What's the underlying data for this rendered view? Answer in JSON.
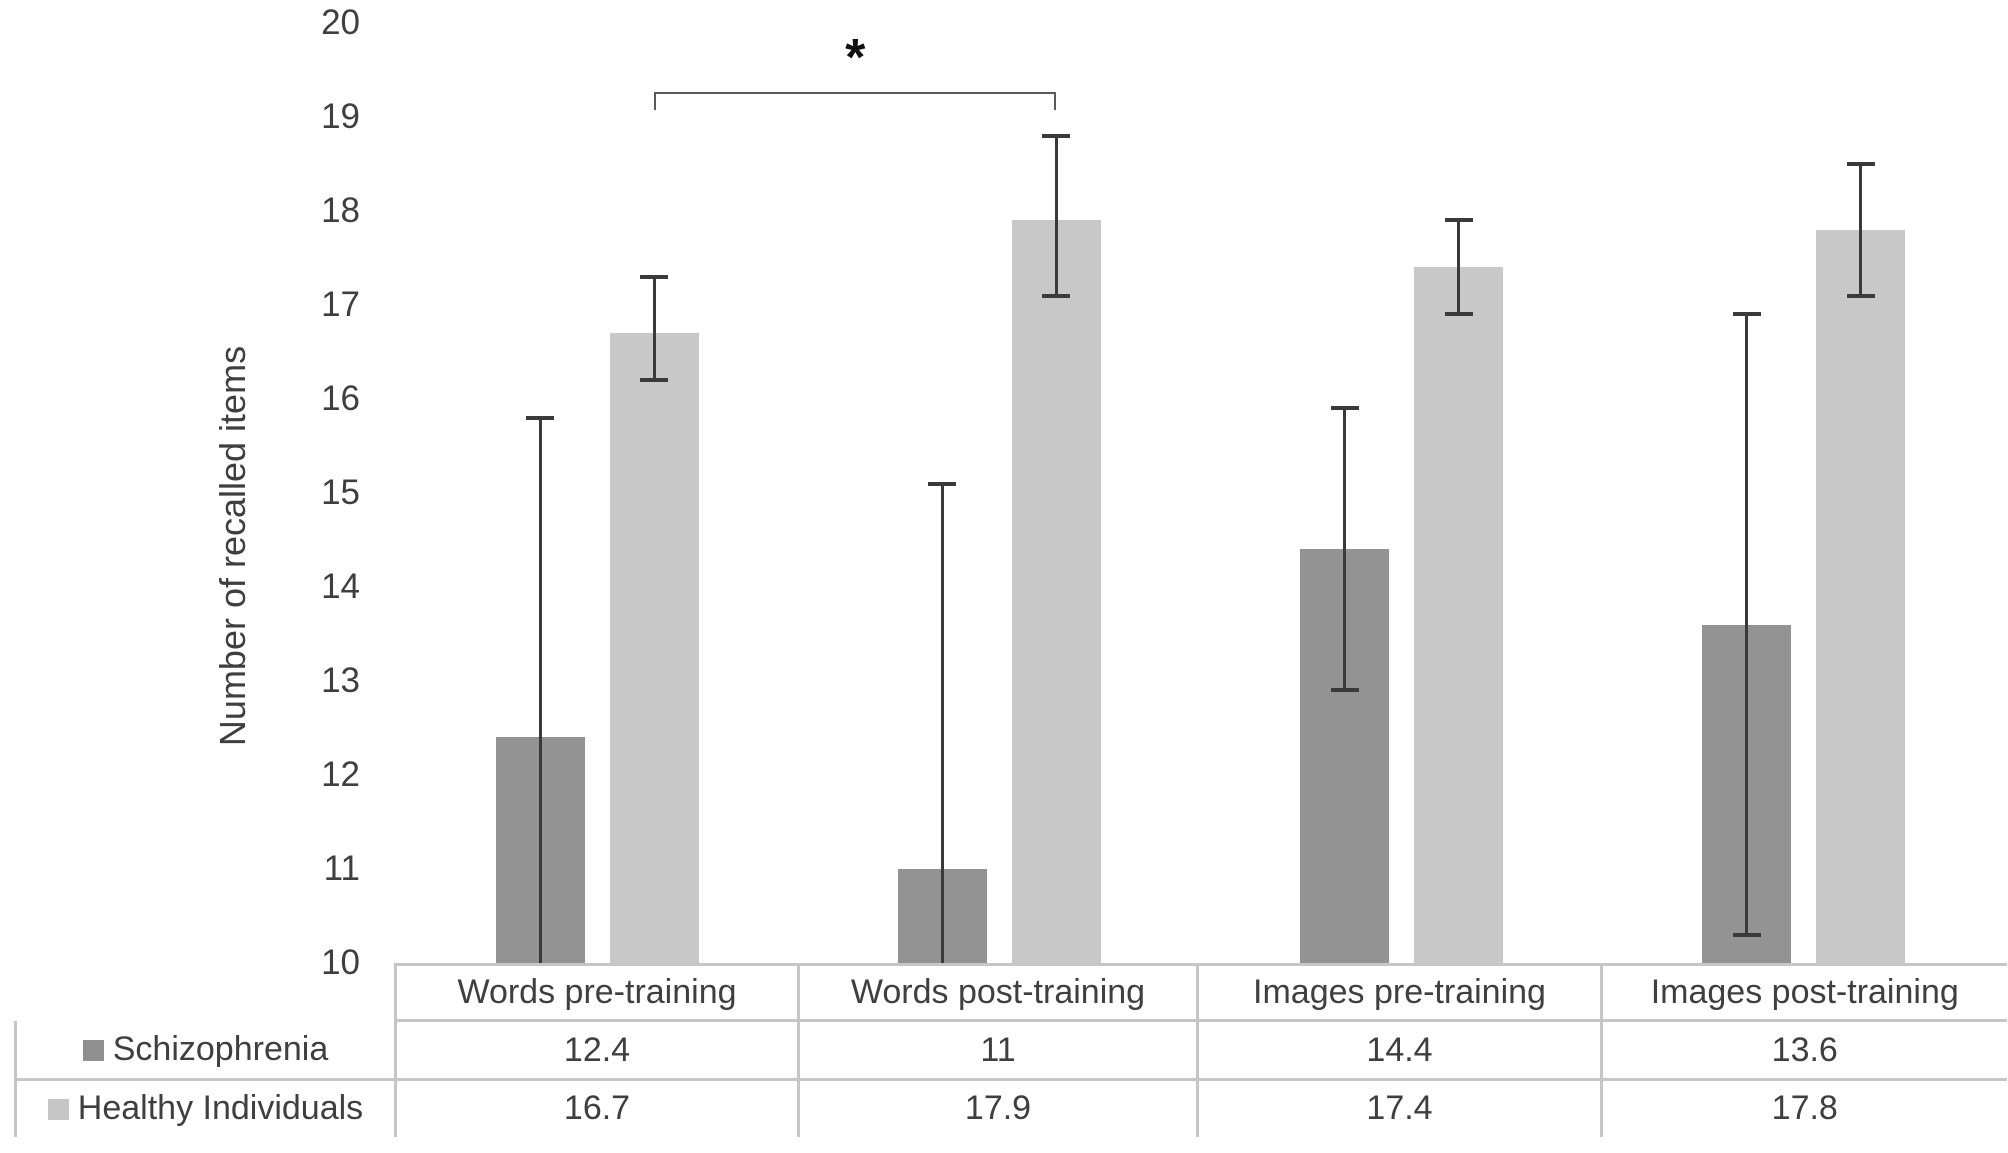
{
  "chart_data": {
    "type": "bar",
    "title": "",
    "ylabel": "Number of recalled items",
    "xlabel": "",
    "ylim": [
      10,
      20
    ],
    "yticks": [
      10,
      11,
      12,
      13,
      14,
      15,
      16,
      17,
      18,
      19,
      20
    ],
    "grid": false,
    "legend_position": "table-rows-left",
    "categories": [
      "Words pre-training",
      "Words post-training",
      "Images pre-training",
      "Images post-training"
    ],
    "series": [
      {
        "name": "Schizophrenia",
        "color": "#939393",
        "legend_color": "#8f8f8f",
        "values": [
          12.4,
          11,
          14.4,
          13.6
        ],
        "labels": [
          "12.4",
          "11",
          "14.4",
          "13.6"
        ],
        "error_upper": [
          15.8,
          15.1,
          15.9,
          16.9
        ],
        "error_lower": [
          null,
          null,
          12.9,
          10.3
        ]
      },
      {
        "name": "Healthy Individuals",
        "color": "#c8c8c8",
        "legend_color": "#c6c6c6",
        "values": [
          16.7,
          17.9,
          17.4,
          17.8
        ],
        "labels": [
          "16.7",
          "17.9",
          "17.4",
          "17.8"
        ],
        "error_upper": [
          17.3,
          18.8,
          17.9,
          18.5
        ],
        "error_lower": [
          16.2,
          17.1,
          16.9,
          17.1
        ]
      }
    ],
    "annotation": {
      "symbol": "*",
      "series": "Healthy Individuals",
      "from_category": "Words pre-training",
      "to_category": "Words post-training"
    },
    "colors": {
      "error_bar": "#3a3a3a",
      "bracket": "#595959",
      "table_border": "#c6c6c6",
      "text": "#3f3f3f",
      "axis_line": "#d6d6d6"
    }
  }
}
